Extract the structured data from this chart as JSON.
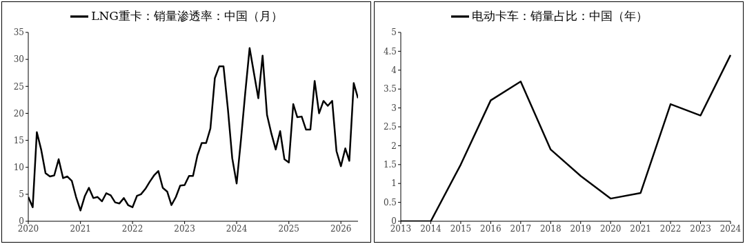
{
  "chart_data": [
    {
      "type": "line",
      "x": [
        "2020-01",
        "2020-02",
        "2020-03",
        "2020-04",
        "2020-05",
        "2020-06",
        "2020-07",
        "2020-08",
        "2020-09",
        "2020-10",
        "2020-11",
        "2020-12",
        "2021-01",
        "2021-02",
        "2021-03",
        "2021-04",
        "2021-05",
        "2021-06",
        "2021-07",
        "2021-08",
        "2021-09",
        "2021-10",
        "2021-11",
        "2021-12",
        "2022-01",
        "2022-02",
        "2022-03",
        "2022-04",
        "2022-05",
        "2022-06",
        "2022-07",
        "2022-08",
        "2022-09",
        "2022-10",
        "2022-11",
        "2022-12",
        "2023-01",
        "2023-02",
        "2023-03",
        "2023-04",
        "2023-05",
        "2023-06",
        "2023-07",
        "2023-08",
        "2023-09",
        "2023-10",
        "2023-11",
        "2023-12",
        "2024-01",
        "2024-02",
        "2024-03",
        "2024-04",
        "2024-05",
        "2024-06",
        "2024-07",
        "2024-08",
        "2024-09",
        "2024-10",
        "2024-11",
        "2024-12",
        "2025-01",
        "2025-02",
        "2025-03",
        "2025-04",
        "2025-05",
        "2025-06",
        "2025-07",
        "2025-08",
        "2025-09",
        "2025-10",
        "2025-11",
        "2025-12",
        "2026-01",
        "2026-02",
        "2026-03",
        "2026-04",
        "2026-05"
      ],
      "series": [
        {
          "name": "LNG重卡：销量渗透率：中国（月）",
          "color": "#000000",
          "values": [
            4.5,
            2.6,
            16.5,
            13.2,
            8.9,
            8.3,
            8.5,
            11.5,
            8.0,
            8.3,
            7.5,
            4.5,
            2.0,
            4.7,
            6.2,
            4.3,
            4.5,
            3.7,
            5.2,
            4.8,
            3.5,
            3.3,
            4.3,
            3.0,
            2.6,
            4.7,
            5.0,
            6.0,
            7.3,
            8.5,
            9.3,
            6.2,
            5.5,
            3.0,
            4.5,
            6.6,
            6.7,
            8.4,
            8.4,
            12.2,
            14.5,
            14.5,
            17.2,
            26.5,
            28.7,
            28.7,
            20.7,
            11.7,
            7.0,
            15.3,
            23.7,
            32.1,
            27.5,
            22.8,
            30.7,
            19.7,
            16.2,
            13.3,
            16.7,
            11.5,
            10.9,
            21.7,
            19.3,
            19.4,
            17.0,
            17.0,
            26.0,
            20.0,
            22.3,
            21.4,
            22.3,
            13.0,
            10.2,
            13.5,
            11.2,
            25.6,
            22.8
          ]
        }
      ],
      "xlim": [
        "2020-01",
        "2026-05"
      ],
      "xticks": [
        "2020",
        "2021",
        "2022",
        "2023",
        "2024",
        "2025",
        "2026"
      ],
      "ylim": [
        0,
        35
      ],
      "yticks": [
        0,
        5,
        10,
        15,
        20,
        25,
        30,
        35
      ],
      "grid": false,
      "legend": "top",
      "marker": "none",
      "line_style": "solid"
    },
    {
      "type": "line",
      "categories": [
        "2013",
        "2014",
        "2015",
        "2016",
        "2017",
        "2018",
        "2019",
        "2020",
        "2021",
        "2022",
        "2023",
        "2024"
      ],
      "series": [
        {
          "name": "电动卡车：销量占比：中国（年）",
          "color": "#000000",
          "values": [
            0,
            0,
            1.5,
            3.2,
            3.7,
            1.9,
            1.2,
            0.6,
            0.75,
            3.1,
            2.8,
            4.4
          ]
        }
      ],
      "ylim": [
        0,
        5
      ],
      "yticks": [
        0,
        0.5,
        1,
        1.5,
        2,
        2.5,
        3,
        3.5,
        4,
        4.5,
        5
      ],
      "grid": false,
      "legend": "top",
      "marker": "none",
      "line_style": "solid"
    }
  ]
}
